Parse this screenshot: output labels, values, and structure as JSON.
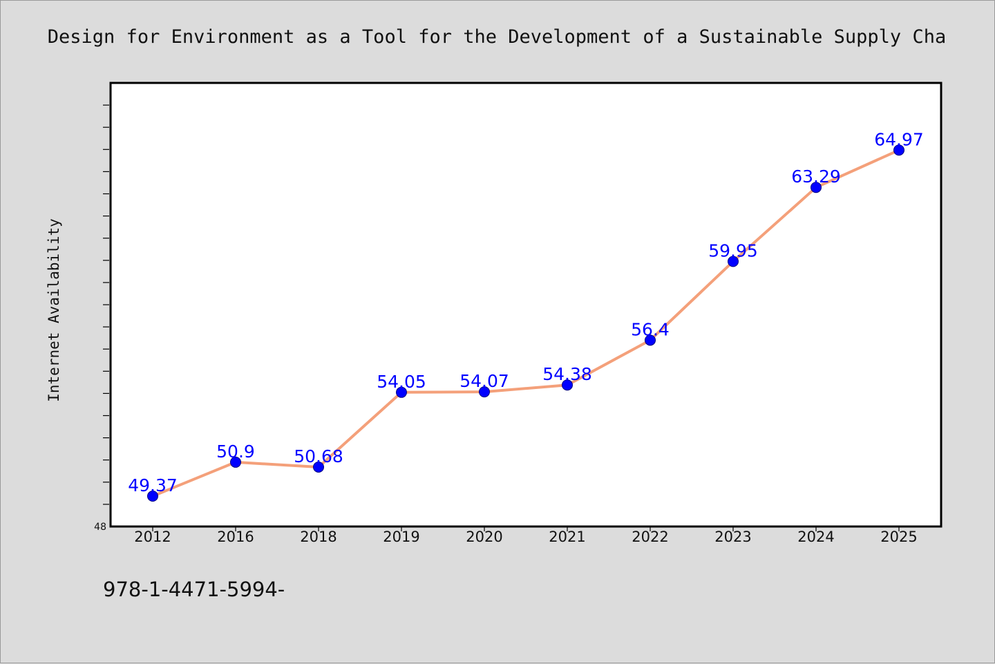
{
  "chart_data": {
    "type": "line",
    "title": "Design for Environment as a Tool for the Development of a Sustainable Supply Cha",
    "xlabel": "",
    "ylabel": "Internet Availability",
    "categories": [
      "2012",
      "2016",
      "2018",
      "2019",
      "2020",
      "2021",
      "2022",
      "2023",
      "2024",
      "2025"
    ],
    "series": [
      {
        "values": [
          49.37,
          50.9,
          50.68,
          54.05,
          54.07,
          54.38,
          56.4,
          59.95,
          63.29,
          64.97
        ],
        "labels": [
          "49.37",
          "50.9",
          "50.68",
          "54.05",
          "54.07",
          "54.38",
          "56.4",
          "59.95",
          "63.29",
          "64.97"
        ]
      }
    ],
    "ylim": [
      48,
      68
    ],
    "yticks_labeled": [
      48
    ],
    "ytick_labels": [
      "48"
    ],
    "grid": false,
    "legend": "none",
    "colors": {
      "line": "#f4a07a",
      "marker": "#0000ff",
      "data_label": "#0000ff",
      "plot_background": "#ffffff",
      "figure_background": "#dcdcdc"
    }
  },
  "footnote": "978-1-4471-5994-"
}
